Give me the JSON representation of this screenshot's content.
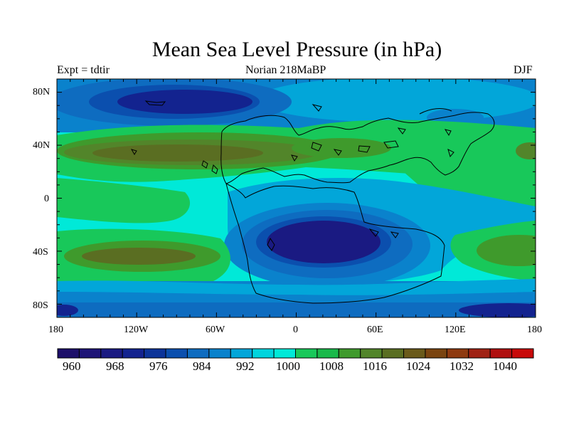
{
  "title": "Mean Sea Level Pressure (in hPa)",
  "subtitle_left": "Expt = tdtir",
  "subtitle_center": "Norian   218MaBP",
  "subtitle_right": "DJF",
  "lat_labels": [
    "80N",
    "40N",
    "0",
    "40S",
    "80S"
  ],
  "lon_labels": [
    "180",
    "120W",
    "60W",
    "0",
    "60E",
    "120E",
    "180"
  ],
  "colorbar": {
    "labels": [
      "960",
      "968",
      "976",
      "984",
      "992",
      "1000",
      "1008",
      "1016",
      "1024",
      "1032",
      "1040"
    ],
    "colors": [
      "#1d0f6a",
      "#1e1477",
      "#1a1a82",
      "#13238f",
      "#0c3499",
      "#0b4fae",
      "#0e6cc0",
      "#0a82cc",
      "#02a6d9",
      "#00d4dd",
      "#00e9d8",
      "#18c85a",
      "#19b94a",
      "#3f9a2c",
      "#52852a",
      "#5a6e22",
      "#6a5a1a",
      "#7a4410",
      "#8e3a10",
      "#a02214",
      "#b01010",
      "#c80a0a"
    ]
  },
  "colors": {
    "deep_low": "#1a1a82",
    "low": "#0c3499",
    "mid_low": "#0e6cc0",
    "cyan": "#00e9d8",
    "light_blue": "#02a6d9",
    "green": "#18c85a",
    "olive": "#52852a",
    "brown": "#6a5a1a"
  }
}
